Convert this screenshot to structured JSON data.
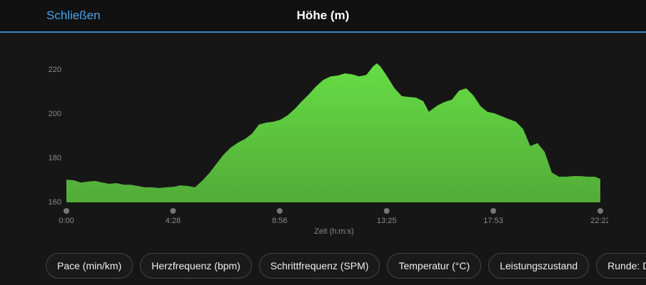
{
  "header": {
    "close": "Schließen"
  },
  "chart_data": {
    "type": "area",
    "title": "Höhe (m)",
    "x_label": "Zeit (h:m:s)",
    "x": [
      0,
      18,
      36,
      54,
      72,
      90,
      108,
      126,
      144,
      161,
      179,
      197,
      215,
      233,
      251,
      269,
      287,
      305,
      323,
      341,
      359,
      377,
      395,
      413,
      431,
      449,
      466,
      484,
      502,
      520,
      538,
      556,
      574,
      592,
      610,
      628,
      646,
      664,
      682,
      700,
      718,
      736,
      754,
      771,
      780,
      789,
      807,
      825,
      843,
      861,
      879,
      897,
      911,
      933,
      951,
      969,
      987,
      1005,
      1023,
      1041,
      1058,
      1076,
      1094,
      1112,
      1130,
      1148,
      1166,
      1184,
      1202,
      1220,
      1238,
      1256,
      1274,
      1292,
      1310,
      1328,
      1342
    ],
    "series": [
      {
        "name": "Höhe",
        "color": "#66dd44",
        "values": [
          170.3,
          170,
          169,
          169.4,
          169.7,
          169,
          168.4,
          168.7,
          168,
          168,
          167.4,
          166.8,
          166.8,
          166.5,
          166.8,
          167,
          167.7,
          167.4,
          166.8,
          169.7,
          173.2,
          177.4,
          181.6,
          184.8,
          187,
          188.7,
          191,
          195.2,
          196.1,
          196.5,
          197.4,
          199.4,
          202.3,
          205.8,
          209,
          212.6,
          215.5,
          217,
          217.4,
          218.4,
          218,
          217,
          217.7,
          221.6,
          222.9,
          221.6,
          216.8,
          211.6,
          208.1,
          207.7,
          207.4,
          205.8,
          201,
          203.9,
          205.5,
          206.5,
          210.6,
          211.6,
          208.4,
          203.5,
          201,
          200.3,
          199,
          197.7,
          196.5,
          193.2,
          185.5,
          186.8,
          182.9,
          173.5,
          171.6,
          171.6,
          171.9,
          171.9,
          171.6,
          171.6,
          170.6
        ]
      }
    ],
    "xlim": [
      0,
      1342
    ],
    "xticks": [
      {
        "value": 0,
        "label": "0:00"
      },
      {
        "value": 268,
        "label": "4:28"
      },
      {
        "value": 536,
        "label": "8:56"
      },
      {
        "value": 805,
        "label": "13:25"
      },
      {
        "value": 1073,
        "label": "17:53"
      },
      {
        "value": 1342,
        "label": "22:22"
      }
    ],
    "ylim": [
      160,
      225
    ],
    "yticks": [
      160,
      180,
      200,
      220
    ]
  },
  "buttons": [
    "Pace (min/km)",
    "Herzfrequenz (bpm)",
    "Schrittfrequenz (SPM)",
    "Temperatur (°C)",
    "Leistungszustand",
    "Runde: Dur"
  ]
}
